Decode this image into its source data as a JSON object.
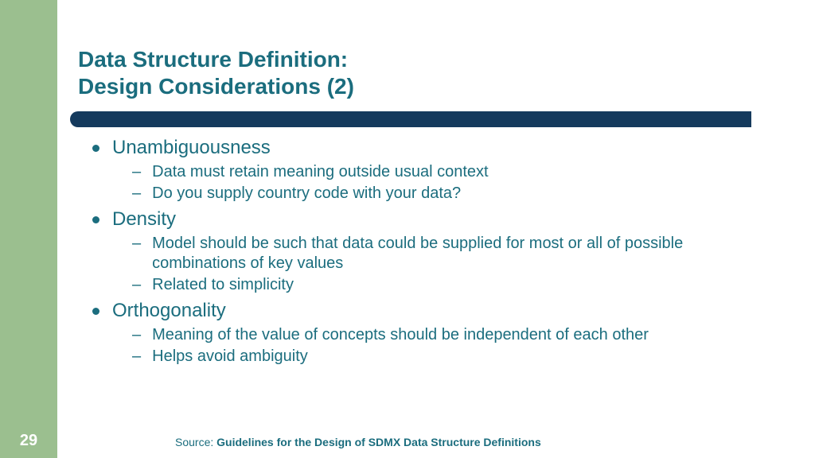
{
  "colors": {
    "sidebar": "#9bbf8f",
    "divider": "#153a5d",
    "text": "#1b6d7e",
    "background": "#ffffff",
    "slide_number": "#ffffff"
  },
  "slide_number": "29",
  "title_line1": "Data Structure Definition:",
  "title_line2": "Design Considerations (2)",
  "bullets": [
    {
      "label": "Unambiguousness",
      "subs": [
        "Data must retain meaning outside usual context",
        "Do you supply country code with your data?"
      ]
    },
    {
      "label": "Density",
      "subs": [
        "Model should be such that data could be supplied for most or all of possible combinations of key values",
        "Related to simplicity"
      ]
    },
    {
      "label": "Orthogonality",
      "subs": [
        "Meaning of the value of concepts should be independent of each other",
        "Helps avoid ambiguity"
      ]
    }
  ],
  "source_prefix": "Source: ",
  "source_text": "Guidelines for the Design of SDMX Data Structure Definitions"
}
